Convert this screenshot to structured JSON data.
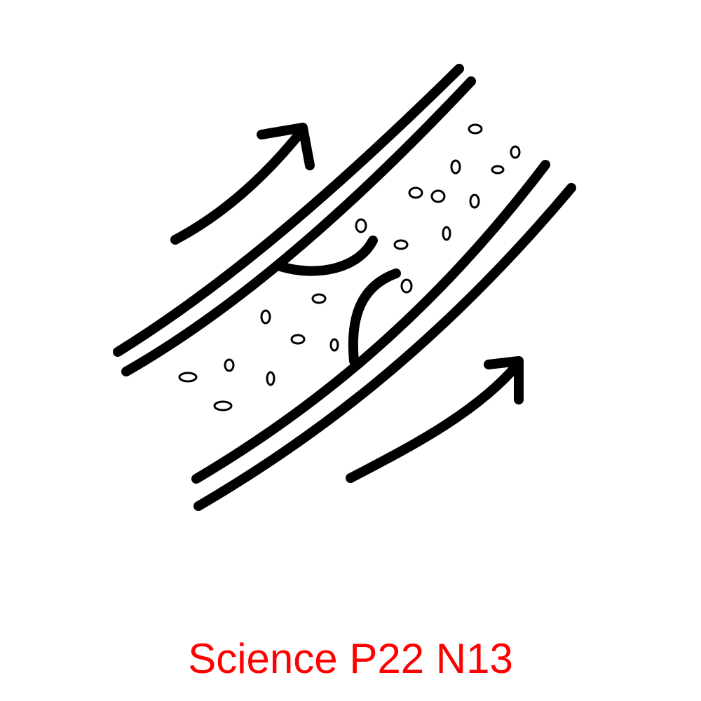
{
  "caption": "Science P22 N13"
}
